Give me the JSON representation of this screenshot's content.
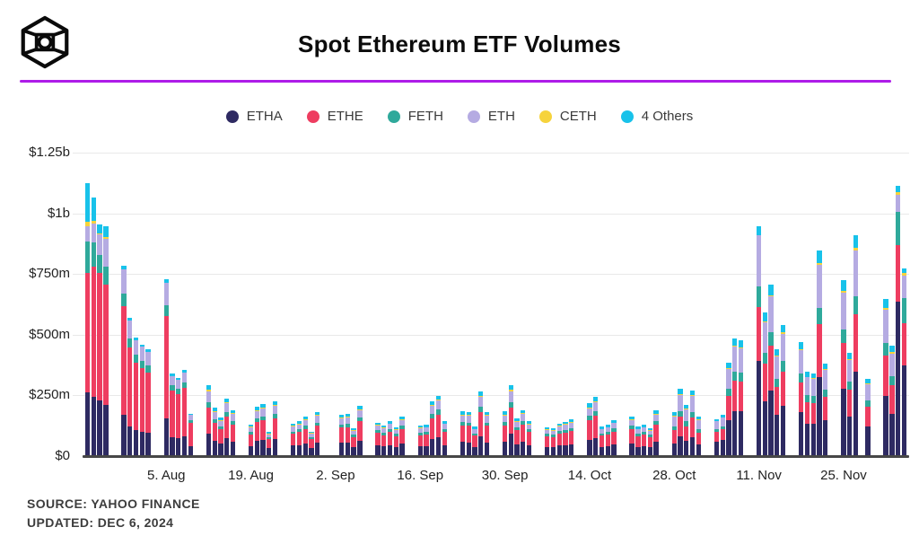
{
  "footer": {
    "source": "SOURCE: YAHOO FINANCE",
    "updated": "UPDATED: DEC 6, 2024"
  },
  "chart_data": {
    "type": "bar",
    "stacked": true,
    "title": "Spot Ethereum ETF Volumes",
    "unit": "USD millions",
    "xlabel": "",
    "ylabel": "",
    "ylim": [
      0,
      1250
    ],
    "grid": true,
    "legend_position": "top-center",
    "ytick_values": [
      0,
      250,
      500,
      750,
      1000,
      1250
    ],
    "ytick_labels": [
      "$0",
      "$250m",
      "$500m",
      "$750m",
      "$1b",
      "$1.25b"
    ],
    "xtick_labels": [
      "5. Aug",
      "19. Aug",
      "2. Sep",
      "16. Sep",
      "30. Sep",
      "14. Oct",
      "28. Oct",
      "11. Nov",
      "25. Nov"
    ],
    "xtick_day_offsets": [
      13,
      27,
      41,
      55,
      69,
      83,
      97,
      111,
      125
    ],
    "series_names": [
      "ETHA",
      "ETHE",
      "FETH",
      "ETH",
      "CETH",
      "4 Others"
    ],
    "series_colors": [
      "#2e2a62",
      "#ee3d60",
      "#2fa99b",
      "#b5abe2",
      "#f6d33c",
      "#18c2ea"
    ],
    "bars": [
      {
        "date": "Jul 23",
        "d": 0,
        "v": [
          260,
          490,
          130,
          65,
          15,
          160
        ]
      },
      {
        "date": "Jul 24",
        "d": 1,
        "v": [
          240,
          535,
          100,
          80,
          10,
          95
        ]
      },
      {
        "date": "Jul 25",
        "d": 2,
        "v": [
          227,
          523,
          73,
          88,
          4,
          35
        ]
      },
      {
        "date": "Jul 26",
        "d": 3,
        "v": [
          208,
          494,
          74,
          117,
          5,
          47
        ]
      },
      {
        "date": "Jul 29",
        "d": 6,
        "v": [
          165,
          450,
          50,
          99,
          0,
          16
        ]
      },
      {
        "date": "Jul 30",
        "d": 7,
        "v": [
          120,
          325,
          37,
          72,
          0,
          11
        ]
      },
      {
        "date": "Jul 31",
        "d": 8,
        "v": [
          102,
          279,
          32,
          62,
          0,
          10
        ]
      },
      {
        "date": "Aug 1",
        "d": 9,
        "v": [
          96,
          262,
          30,
          58,
          0,
          9
        ]
      },
      {
        "date": "Aug 2",
        "d": 10,
        "v": [
          91,
          250,
          28,
          57,
          0,
          9
        ]
      },
      {
        "date": "Aug 5",
        "d": 13,
        "v": [
          152,
          420,
          45,
          93,
          0,
          15
        ]
      },
      {
        "date": "Aug 6",
        "d": 14,
        "v": [
          75,
          190,
          22,
          40,
          0,
          8
        ]
      },
      {
        "date": "Aug 7",
        "d": 15,
        "v": [
          70,
          182,
          21,
          39,
          0,
          8
        ]
      },
      {
        "date": "Aug 8",
        "d": 16,
        "v": [
          76,
          200,
          23,
          43,
          0,
          8
        ]
      },
      {
        "date": "Aug 9",
        "d": 17,
        "v": [
          38,
          96,
          11,
          21,
          0,
          4
        ]
      },
      {
        "date": "Aug 12",
        "d": 20,
        "v": [
          87,
          110,
          23,
          44,
          6,
          20
        ]
      },
      {
        "date": "Aug 13",
        "d": 21,
        "v": [
          59,
          74,
          16,
          29,
          4,
          13
        ]
      },
      {
        "date": "Aug 14",
        "d": 22,
        "v": [
          47,
          59,
          12,
          23,
          3,
          11
        ]
      },
      {
        "date": "Aug 15",
        "d": 23,
        "v": [
          71,
          89,
          19,
          35,
          5,
          16
        ]
      },
      {
        "date": "Aug 16",
        "d": 24,
        "v": [
          56,
          70,
          15,
          28,
          4,
          12
        ]
      },
      {
        "date": "Aug 19",
        "d": 27,
        "v": [
          38,
          48,
          10,
          19,
          2,
          8
        ]
      },
      {
        "date": "Aug 20",
        "d": 28,
        "v": [
          60,
          76,
          16,
          30,
          4,
          14
        ]
      },
      {
        "date": "Aug 21",
        "d": 29,
        "v": [
          63,
          80,
          17,
          31,
          4,
          15
        ]
      },
      {
        "date": "Aug 22",
        "d": 30,
        "v": [
          29,
          36,
          8,
          14,
          2,
          6
        ]
      },
      {
        "date": "Aug 23",
        "d": 31,
        "v": [
          67,
          84,
          18,
          33,
          4,
          16
        ]
      },
      {
        "date": "Aug 26",
        "d": 34,
        "v": [
          39,
          49,
          10,
          20,
          3,
          9
        ]
      },
      {
        "date": "Aug 27",
        "d": 35,
        "v": [
          42,
          53,
          11,
          21,
          3,
          10
        ]
      },
      {
        "date": "Aug 28",
        "d": 36,
        "v": [
          48,
          61,
          13,
          24,
          3,
          11
        ]
      },
      {
        "date": "Aug 29",
        "d": 37,
        "v": [
          29,
          37,
          8,
          15,
          2,
          6
        ]
      },
      {
        "date": "Aug 30",
        "d": 38,
        "v": [
          53,
          68,
          14,
          27,
          4,
          12
        ]
      },
      {
        "date": "Sep 3",
        "d": 42,
        "v": [
          50,
          63,
          13,
          25,
          3,
          13
        ]
      },
      {
        "date": "Sep 4",
        "d": 43,
        "v": [
          51,
          65,
          14,
          26,
          3,
          12
        ]
      },
      {
        "date": "Sep 5",
        "d": 44,
        "v": [
          33,
          42,
          9,
          17,
          2,
          8
        ]
      },
      {
        "date": "Sep 6",
        "d": 45,
        "v": [
          61,
          78,
          16,
          31,
          4,
          14
        ]
      },
      {
        "date": "Sep 9",
        "d": 48,
        "v": [
          40,
          51,
          11,
          20,
          3,
          9
        ]
      },
      {
        "date": "Sep 10",
        "d": 49,
        "v": [
          37,
          46,
          10,
          18,
          2,
          9
        ]
      },
      {
        "date": "Sep 11",
        "d": 50,
        "v": [
          42,
          54,
          11,
          21,
          3,
          10
        ]
      },
      {
        "date": "Sep 12",
        "d": 51,
        "v": [
          35,
          44,
          9,
          17,
          2,
          8
        ]
      },
      {
        "date": "Sep 13",
        "d": 52,
        "v": [
          48,
          60,
          13,
          24,
          3,
          11
        ]
      },
      {
        "date": "Sep 16",
        "d": 55,
        "v": [
          37,
          46,
          10,
          18,
          2,
          9
        ]
      },
      {
        "date": "Sep 17",
        "d": 56,
        "v": [
          38,
          47,
          10,
          19,
          2,
          9
        ]
      },
      {
        "date": "Sep 18",
        "d": 57,
        "v": [
          67,
          84,
          18,
          33,
          4,
          16
        ]
      },
      {
        "date": "Sep 19",
        "d": 58,
        "v": [
          74,
          93,
          20,
          37,
          5,
          16
        ]
      },
      {
        "date": "Sep 20",
        "d": 59,
        "v": [
          42,
          54,
          11,
          21,
          3,
          10
        ]
      },
      {
        "date": "Sep 23",
        "d": 62,
        "v": [
          54,
          68,
          14,
          27,
          4,
          13
        ]
      },
      {
        "date": "Sep 24",
        "d": 63,
        "v": [
          53,
          68,
          14,
          27,
          4,
          12
        ]
      },
      {
        "date": "Sep 25",
        "d": 64,
        "v": [
          35,
          45,
          9,
          18,
          2,
          9
        ]
      },
      {
        "date": "Sep 26",
        "d": 65,
        "v": [
          79,
          100,
          21,
          39,
          5,
          18
        ]
      },
      {
        "date": "Sep 27",
        "d": 66,
        "v": [
          53,
          68,
          14,
          27,
          4,
          12
        ]
      },
      {
        "date": "Sep 30",
        "d": 69,
        "v": [
          54,
          68,
          14,
          27,
          4,
          13
        ]
      },
      {
        "date": "Oct 1",
        "d": 70,
        "v": [
          87,
          110,
          23,
          44,
          6,
          20
        ]
      },
      {
        "date": "Oct 2",
        "d": 71,
        "v": [
          45,
          57,
          12,
          23,
          3,
          10
        ]
      },
      {
        "date": "Oct 3",
        "d": 72,
        "v": [
          56,
          70,
          15,
          28,
          4,
          12
        ]
      },
      {
        "date": "Oct 4",
        "d": 73,
        "v": [
          42,
          53,
          11,
          21,
          3,
          10
        ]
      },
      {
        "date": "Oct 7",
        "d": 76,
        "v": [
          35,
          44,
          9,
          17,
          2,
          9
        ]
      },
      {
        "date": "Oct 8",
        "d": 77,
        "v": [
          33,
          42,
          9,
          17,
          2,
          7
        ]
      },
      {
        "date": "Oct 9",
        "d": 78,
        "v": [
          39,
          50,
          10,
          20,
          3,
          9
        ]
      },
      {
        "date": "Oct 10",
        "d": 79,
        "v": [
          41,
          52,
          11,
          21,
          3,
          10
        ]
      },
      {
        "date": "Oct 11",
        "d": 80,
        "v": [
          44,
          56,
          12,
          22,
          3,
          10
        ]
      },
      {
        "date": "Oct 14",
        "d": 83,
        "v": [
          64,
          81,
          17,
          32,
          4,
          16
        ]
      },
      {
        "date": "Oct 15",
        "d": 84,
        "v": [
          72,
          91,
          19,
          36,
          5,
          17
        ]
      },
      {
        "date": "Oct 16",
        "d": 85,
        "v": [
          35,
          45,
          9,
          18,
          2,
          9
        ]
      },
      {
        "date": "Oct 17",
        "d": 86,
        "v": [
          38,
          47,
          10,
          19,
          2,
          9
        ]
      },
      {
        "date": "Oct 18",
        "d": 87,
        "v": [
          43,
          55,
          12,
          22,
          3,
          9
        ]
      },
      {
        "date": "Oct 21",
        "d": 90,
        "v": [
          48,
          60,
          13,
          24,
          3,
          11
        ]
      },
      {
        "date": "Oct 22",
        "d": 91,
        "v": [
          35,
          44,
          9,
          18,
          2,
          9
        ]
      },
      {
        "date": "Oct 23",
        "d": 92,
        "v": [
          38,
          47,
          10,
          19,
          2,
          9
        ]
      },
      {
        "date": "Oct 24",
        "d": 93,
        "v": [
          33,
          42,
          9,
          17,
          2,
          8
        ]
      },
      {
        "date": "Oct 25",
        "d": 94,
        "v": [
          55,
          70,
          15,
          28,
          4,
          12
        ]
      },
      {
        "date": "Oct 28",
        "d": 97,
        "v": [
          49,
          53,
          16,
          42,
          4,
          12
        ]
      },
      {
        "date": "Oct 29",
        "d": 98,
        "v": [
          76,
          82,
          24,
          65,
          5,
          20
        ]
      },
      {
        "date": "Oct 30",
        "d": 99,
        "v": [
          58,
          62,
          19,
          49,
          4,
          14
        ]
      },
      {
        "date": "Oct 31",
        "d": 100,
        "v": [
          75,
          80,
          24,
          64,
          5,
          20
        ]
      },
      {
        "date": "Nov 1",
        "d": 101,
        "v": [
          45,
          48,
          14,
          38,
          3,
          12
        ]
      },
      {
        "date": "Nov 4",
        "d": 104,
        "v": [
          57,
          39,
          12,
          32,
          1,
          9
        ]
      },
      {
        "date": "Nov 5",
        "d": 105,
        "v": [
          63,
          43,
          13,
          35,
          2,
          9
        ]
      },
      {
        "date": "Nov 6",
        "d": 106,
        "v": [
          145,
          99,
          30,
          80,
          4,
          23
        ]
      },
      {
        "date": "Nov 7",
        "d": 107,
        "v": [
          182,
          125,
          38,
          101,
          5,
          29
        ]
      },
      {
        "date": "Nov 8",
        "d": 108,
        "v": [
          180,
          123,
          38,
          99,
          5,
          28
        ]
      },
      {
        "date": "Nov 11",
        "d": 111,
        "v": [
          387,
          222,
          87,
          209,
          0,
          37
        ]
      },
      {
        "date": "Nov 12",
        "d": 112,
        "v": [
          223,
          153,
          47,
          123,
          6,
          36
        ]
      },
      {
        "date": "Nov 13",
        "d": 113,
        "v": [
          267,
          183,
          56,
          147,
          7,
          43
        ]
      },
      {
        "date": "Nov 14",
        "d": 114,
        "v": [
          166,
          114,
          35,
          92,
          4,
          26
        ]
      },
      {
        "date": "Nov 15",
        "d": 115,
        "v": [
          204,
          140,
          43,
          113,
          5,
          33
        ]
      },
      {
        "date": "Nov 18",
        "d": 118,
        "v": [
          177,
          121,
          37,
          98,
          5,
          29
        ]
      },
      {
        "date": "Nov 19",
        "d": 119,
        "v": [
          131,
          89,
          28,
          72,
          3,
          21
        ]
      },
      {
        "date": "Nov 20",
        "d": 120,
        "v": [
          128,
          88,
          27,
          71,
          3,
          21
        ]
      },
      {
        "date": "Nov 21",
        "d": 121,
        "v": [
          320,
          219,
          67,
          177,
          9,
          51
        ]
      },
      {
        "date": "Nov 22",
        "d": 122,
        "v": [
          143,
          98,
          30,
          79,
          4,
          23
        ]
      },
      {
        "date": "Nov 25",
        "d": 125,
        "v": [
          274,
          187,
          58,
          151,
          7,
          44
        ]
      },
      {
        "date": "Nov 26",
        "d": 126,
        "v": [
          160,
          110,
          34,
          89,
          4,
          25
        ]
      },
      {
        "date": "Nov 27",
        "d": 127,
        "v": [
          345,
          236,
          73,
          191,
          9,
          54
        ]
      },
      {
        "date": "Nov 29",
        "d": 129,
        "v": [
          119,
          82,
          25,
          66,
          3,
          19
        ]
      },
      {
        "date": "Dec 2",
        "d": 132,
        "v": [
          245,
          167,
          52,
          135,
          6,
          39
        ]
      },
      {
        "date": "Dec 3",
        "d": 133,
        "v": [
          171,
          117,
          36,
          95,
          5,
          27
        ]
      },
      {
        "date": "Dec 4",
        "d": 134,
        "v": [
          634,
          232,
          138,
          68,
          12,
          25
        ]
      },
      {
        "date": "Dec 5",
        "d": 135,
        "v": [
          369,
          175,
          105,
          90,
          12,
          19
        ]
      }
    ]
  }
}
